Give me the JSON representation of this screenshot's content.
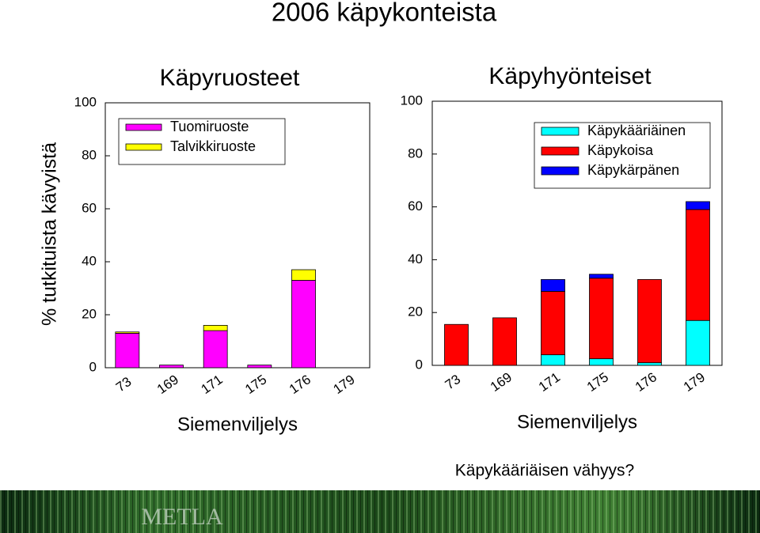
{
  "title": "2006 käpykonteista",
  "y_label": "% tutkituista kävyistä",
  "note": "Käpykääriäisen vähyys?",
  "logo": "METLA",
  "chart_data": [
    {
      "type": "bar",
      "stacked": true,
      "title": "Käpyruosteet",
      "x_label": "Siemenviljelys",
      "categories": [
        "73",
        "169",
        "171",
        "175",
        "176",
        "179"
      ],
      "series": [
        {
          "name": "Tuomiruoste",
          "color": "#ff00ff",
          "values": [
            13,
            1,
            14,
            1,
            33,
            0
          ]
        },
        {
          "name": "Talvikkiruoste",
          "color": "#ffff00",
          "values": [
            0.5,
            0,
            2,
            0,
            4,
            0
          ]
        }
      ],
      "ylim": [
        0,
        100
      ],
      "yticks": [
        0,
        20,
        40,
        60,
        80,
        100
      ],
      "legend": "upper left"
    },
    {
      "type": "bar",
      "stacked": true,
      "title": "Käpyhyönteiset",
      "x_label": "Siemenviljelys",
      "categories": [
        "73",
        "169",
        "171",
        "175",
        "176",
        "179"
      ],
      "series": [
        {
          "name": "Käpykääriäinen",
          "color": "#00ffff",
          "values": [
            0,
            0,
            4,
            2.5,
            1,
            17
          ]
        },
        {
          "name": "Käpykoisa",
          "color": "#ff0000",
          "values": [
            15.5,
            18,
            24,
            30.5,
            31.5,
            42
          ]
        },
        {
          "name": "Käpykärpänen",
          "color": "#0000ff",
          "values": [
            0,
            0,
            4.5,
            1.5,
            0,
            3
          ]
        }
      ],
      "ylim": [
        0,
        100
      ],
      "yticks": [
        0,
        20,
        40,
        60,
        80,
        100
      ],
      "legend": "upper right"
    }
  ]
}
